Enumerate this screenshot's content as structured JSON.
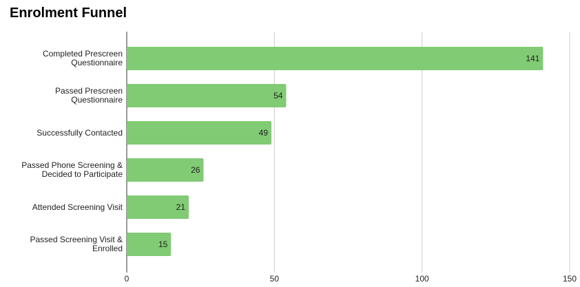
{
  "chart_data": {
    "type": "hbar",
    "title": "Enrolment Funnel",
    "categories": [
      "Completed Prescreen Questionnaire",
      "Passed Prescreen Questionnaire",
      "Successfully Contacted",
      "Passed Phone Screening & Decided to Participate",
      "Attended Screening Visit",
      "Passed Screening Visit & Enrolled"
    ],
    "values": [
      141,
      54,
      49,
      26,
      21,
      15
    ],
    "color": "#80cb74",
    "xlim": [
      0,
      150
    ],
    "xticks": [
      0,
      50,
      100,
      150
    ],
    "grid": true
  }
}
